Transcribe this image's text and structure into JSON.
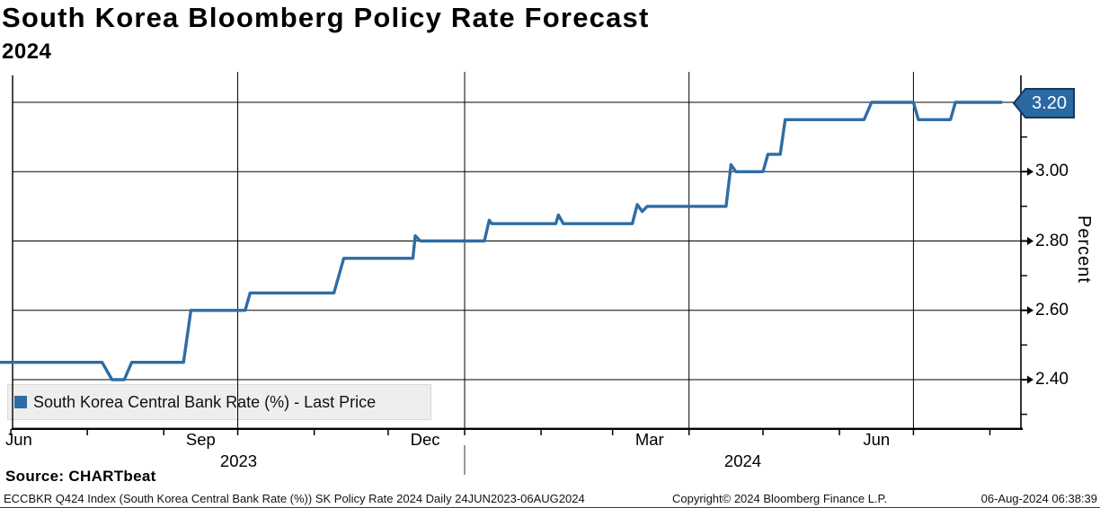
{
  "title": "South Korea Bloomberg Policy Rate Forecast",
  "subtitle": "2024",
  "legend": {
    "label": "South Korea Central Bank Rate (%) - Last Price",
    "marker_color": "#2e6da4",
    "background": "#eeeeee"
  },
  "source_label": "Source: CHARTbeat",
  "footer": {
    "left": "ECCBKR Q424 Index (South Korea Central Bank Rate (%)) SK Policy Rate 2024  Daily 24JUN2023-06AUG2024",
    "center": "Copyright© 2024 Bloomberg Finance L.P.",
    "right": "06-Aug-2024 06:38:39"
  },
  "chart_data": {
    "type": "line",
    "title": "South Korea Bloomberg Policy Rate Forecast 2024",
    "ylabel": "Percent",
    "xlabel": "",
    "grid": true,
    "legend_position": "bottom-left",
    "x_range": [
      "2023-06-24",
      "2024-08-06"
    ],
    "ylim": [
      2.3,
      3.28
    ],
    "line_color": "#2e6da4",
    "grid_color": "#000000",
    "flag_bg": "#2a69a2",
    "flag_border": "#16365c",
    "last_price": 3.2,
    "last_price_label": "3.20",
    "y_axis_labels": [
      {
        "value": 3.0,
        "label": "3.00"
      },
      {
        "value": 2.8,
        "label": "2.80"
      },
      {
        "value": 2.6,
        "label": "2.60"
      },
      {
        "value": 2.4,
        "label": "2.40"
      }
    ],
    "y_major_ticks": [
      3.2,
      3.0,
      2.8,
      2.6,
      2.4
    ],
    "y_minor_ticks": [
      3.1,
      2.9,
      2.7,
      2.5,
      2.3
    ],
    "x_gridline_dates": [
      "2023-10-01",
      "2024-01-01",
      "2024-04-01",
      "2024-07-01"
    ],
    "x_month_tick_dates": [
      "2023-07-01",
      "2023-08-01",
      "2023-09-01",
      "2023-10-01",
      "2023-11-01",
      "2023-12-01",
      "2024-01-01",
      "2024-02-01",
      "2024-03-01",
      "2024-04-01",
      "2024-05-01",
      "2024-06-01",
      "2024-07-01",
      "2024-08-01"
    ],
    "x_labels": [
      {
        "text": "Jun",
        "date": "2023-06-26",
        "align": "left"
      },
      {
        "text": "Sep",
        "date": "2023-09-16",
        "align": "center"
      },
      {
        "text": "Dec",
        "date": "2023-12-16",
        "align": "center"
      },
      {
        "text": "Mar",
        "date": "2024-03-16",
        "align": "center"
      },
      {
        "text": "Jun",
        "date": "2024-06-16",
        "align": "center"
      }
    ],
    "year_labels": [
      {
        "text": "2023",
        "from": "2023-06-24",
        "to": "2024-01-01"
      },
      {
        "text": "2024",
        "from": "2024-01-01",
        "to": "2024-12-31"
      }
    ],
    "series": [
      {
        "name": "South Korea Central Bank Rate (%) - Last Price",
        "color": "#2e6da4",
        "points": [
          [
            "2023-06-24",
            2.45
          ],
          [
            "2023-08-07",
            2.45
          ],
          [
            "2023-08-11",
            2.4
          ],
          [
            "2023-08-16",
            2.4
          ],
          [
            "2023-08-19",
            2.45
          ],
          [
            "2023-09-09",
            2.45
          ],
          [
            "2023-09-12",
            2.6
          ],
          [
            "2023-10-04",
            2.6
          ],
          [
            "2023-10-06",
            2.65
          ],
          [
            "2023-11-09",
            2.65
          ],
          [
            "2023-11-13",
            2.75
          ],
          [
            "2023-12-11",
            2.75
          ],
          [
            "2023-12-12",
            2.815
          ],
          [
            "2023-12-14",
            2.8
          ],
          [
            "2024-01-09",
            2.8
          ],
          [
            "2024-01-11",
            2.86
          ],
          [
            "2024-01-12",
            2.85
          ],
          [
            "2024-02-07",
            2.85
          ],
          [
            "2024-02-08",
            2.875
          ],
          [
            "2024-02-10",
            2.85
          ],
          [
            "2024-03-09",
            2.85
          ],
          [
            "2024-03-11",
            2.905
          ],
          [
            "2024-03-13",
            2.885
          ],
          [
            "2024-03-15",
            2.9
          ],
          [
            "2024-04-16",
            2.9
          ],
          [
            "2024-04-18",
            3.02
          ],
          [
            "2024-04-20",
            3.0
          ],
          [
            "2024-05-01",
            3.0
          ],
          [
            "2024-05-03",
            3.05
          ],
          [
            "2024-05-08",
            3.05
          ],
          [
            "2024-05-10",
            3.15
          ],
          [
            "2024-06-11",
            3.15
          ],
          [
            "2024-06-14",
            3.2
          ],
          [
            "2024-07-01",
            3.2
          ],
          [
            "2024-07-03",
            3.15
          ],
          [
            "2024-07-16",
            3.15
          ],
          [
            "2024-07-18",
            3.2
          ],
          [
            "2024-08-06",
            3.2
          ]
        ]
      }
    ]
  }
}
